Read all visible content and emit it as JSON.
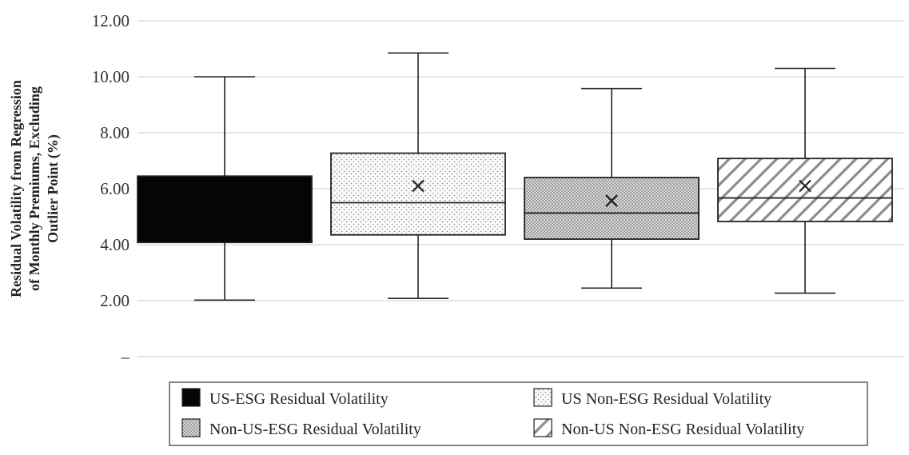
{
  "chart_data": {
    "type": "box",
    "title": "",
    "xlabel": "",
    "ylabel": "Residual Volatility from Regression of Monthly Premiums, Excluding Outlier Point (%)",
    "ylabel_lines": [
      "Residual Volatility from Regression",
      "of Monthly Premiums, Excluding",
      "Outlier Point (%)"
    ],
    "ylim": [
      0,
      12
    ],
    "y_ticks": [
      0,
      2,
      4,
      6,
      8,
      10,
      12
    ],
    "y_tick_labels": [
      "–",
      "2.00",
      "4.00",
      "6.00",
      "8.00",
      "10.00",
      "12.00"
    ],
    "grid": true,
    "legend_position": "bottom",
    "series": [
      {
        "name": "US-ESG Residual Volatility",
        "fill": "solid",
        "min": 2.02,
        "q1": 4.08,
        "median": 6.45,
        "q3": 6.45,
        "max": 10.0,
        "mean": null
      },
      {
        "name": "US Non-ESG Residual Volatility",
        "fill": "dots",
        "min": 2.08,
        "q1": 4.35,
        "median": 5.5,
        "q3": 7.27,
        "max": 10.85,
        "mean": 6.1
      },
      {
        "name": "Non-US-ESG Residual Volatility",
        "fill": "dense-dots",
        "min": 2.45,
        "q1": 4.2,
        "median": 5.13,
        "q3": 6.4,
        "max": 9.58,
        "mean": 5.57
      },
      {
        "name": "Non-US Non-ESG Residual Volatility",
        "fill": "hatch",
        "min": 2.27,
        "q1": 4.83,
        "median": 5.67,
        "q3": 7.08,
        "max": 10.3,
        "mean": 6.1
      }
    ],
    "colors": {
      "axis": "#333333",
      "grid": "#c8c8c8",
      "box_stroke": "#222222",
      "solid_fill": "#050505"
    }
  }
}
